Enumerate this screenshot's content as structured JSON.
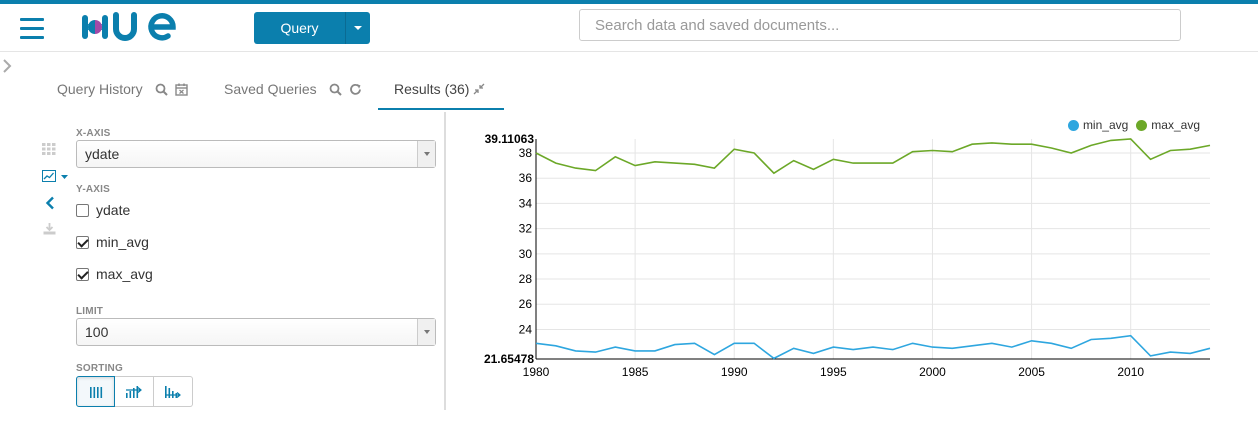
{
  "brand": {
    "logo_text": "HUE",
    "accent": "#0B7FAD"
  },
  "toolbar": {
    "query_label": "Query"
  },
  "search": {
    "placeholder": "Search data and saved documents..."
  },
  "tabs": [
    {
      "label": "Query History",
      "icons": [
        "search-icon",
        "calendar-icon"
      ]
    },
    {
      "label": "Saved Queries",
      "icons": [
        "search-icon",
        "refresh-icon"
      ]
    },
    {
      "label": "Results (36)",
      "icons": [
        "collapse-icon"
      ],
      "active": true
    }
  ],
  "sidebar": {
    "icons": [
      "grid-icon",
      "chart-icon",
      "chevron-left-icon",
      "download-icon"
    ]
  },
  "controls": {
    "x_axis_label": "X-AXIS",
    "x_axis_value": "ydate",
    "y_axis_label": "Y-AXIS",
    "y_axis_options": [
      {
        "label": "ydate",
        "checked": false
      },
      {
        "label": "min_avg",
        "checked": true
      },
      {
        "label": "max_avg",
        "checked": true
      }
    ],
    "limit_label": "LIMIT",
    "limit_value": "100",
    "sorting_label": "SORTING"
  },
  "chart_data": {
    "type": "line",
    "xlabel": "",
    "ylabel": "",
    "xlim": [
      1980,
      2014
    ],
    "ylim": [
      21.65478,
      39.11063
    ],
    "y_top_label": "39.11063",
    "y_bottom_label": "21.65478",
    "yticks": [
      24,
      26,
      28,
      30,
      32,
      34,
      36,
      38
    ],
    "xticks": [
      1980,
      1985,
      1990,
      1995,
      2000,
      2005,
      2010
    ],
    "legend_position": "top-right",
    "x": [
      1980,
      1981,
      1982,
      1983,
      1984,
      1985,
      1986,
      1987,
      1988,
      1989,
      1990,
      1991,
      1992,
      1993,
      1994,
      1995,
      1996,
      1997,
      1998,
      1999,
      2000,
      2001,
      2002,
      2003,
      2004,
      2005,
      2006,
      2007,
      2008,
      2009,
      2010,
      2011,
      2012,
      2013,
      2014
    ],
    "series": [
      {
        "name": "min_avg",
        "color": "#2EA6DF",
        "values": [
          22.9,
          22.7,
          22.3,
          22.2,
          22.6,
          22.3,
          22.3,
          22.8,
          22.9,
          22.0,
          22.9,
          22.9,
          21.7,
          22.5,
          22.1,
          22.6,
          22.4,
          22.6,
          22.4,
          22.9,
          22.6,
          22.5,
          22.7,
          22.9,
          22.6,
          23.1,
          22.9,
          22.5,
          23.2,
          23.3,
          23.5,
          21.9,
          22.2,
          22.1,
          22.5
        ]
      },
      {
        "name": "max_avg",
        "color": "#6CA828",
        "values": [
          38.0,
          37.2,
          36.8,
          36.6,
          37.7,
          37.0,
          37.3,
          37.2,
          37.1,
          36.8,
          38.3,
          38.0,
          36.4,
          37.4,
          36.7,
          37.5,
          37.2,
          37.2,
          37.2,
          38.1,
          38.2,
          38.1,
          38.7,
          38.8,
          38.7,
          38.7,
          38.4,
          38.0,
          38.6,
          39.0,
          39.11,
          37.5,
          38.2,
          38.3,
          38.6
        ]
      }
    ]
  }
}
